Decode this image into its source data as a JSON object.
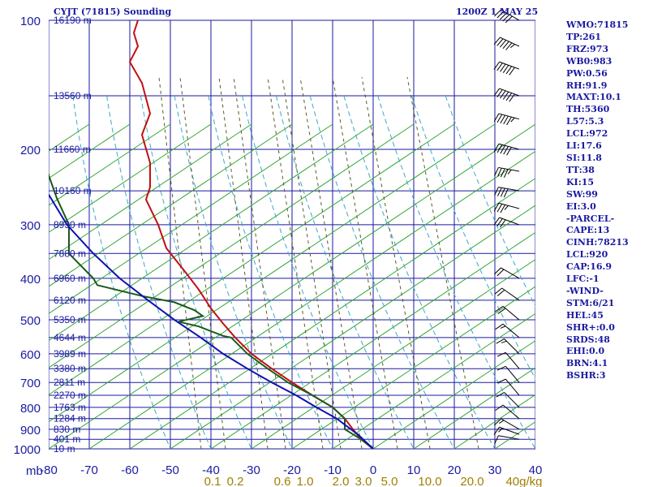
{
  "header": {
    "station_title": "CYJT (71815) Sounding",
    "run_time": "1200Z  1 MAY 25"
  },
  "indices": [
    "WMO:71815",
    "TP:261",
    "FRZ:973",
    "WB0:983",
    "PW:0.56",
    "RH:91.9",
    "MAXT:10.1",
    "TH:5360",
    "L57:5.3",
    "LCL:972",
    "LI:17.6",
    "SI:11.8",
    "TT:38",
    "KI:15",
    "SW:99",
    "EI:3.0",
    "-PARCEL-",
    "CAPE:13",
    "CINH:78213",
    "LCL:920",
    "CAP:16.9",
    "LFC:-1",
    "-WIND-",
    "STM:6/21",
    "HEL:45",
    "SHR+:0.0",
    "SRDS:48",
    "EHI:0.0",
    "BRN:4.1",
    "BSHR:3"
  ],
  "colors": {
    "isobars": "#1a1aa0",
    "isotherms": "#1a1aa0",
    "dry_adiabats": "#2fa52f",
    "moist_adiabats": "#3aa8c8",
    "mixing_ratio": "#5a5a2a",
    "temperature": "#c01010",
    "dewpoint": "#1a5a1a",
    "parcel": "#1010b0",
    "wind_barbs": "#000000",
    "text": "#1a1aa0",
    "mixing_labels": "#a08000"
  },
  "chart_data": {
    "type": "line",
    "diagram": "skew-T log-P",
    "x_axis_unit": "°C",
    "y_axis_unit": "mb",
    "y_scale": "log",
    "xlim": [
      -80,
      0
    ],
    "ylim": [
      1000,
      100
    ],
    "pressure_levels": [
      100,
      200,
      300,
      400,
      500,
      600,
      700,
      800,
      900,
      1000
    ],
    "pressure_labels": [
      "100",
      "200",
      "300",
      "400",
      "500",
      "600",
      "700",
      "800",
      "900",
      "1000"
    ],
    "y_unit_label": "mb",
    "temperature_ticks": [
      -80,
      -70,
      -60,
      -50,
      -40,
      -30,
      -20,
      -10,
      0,
      10,
      20,
      30,
      40
    ],
    "temperature_labels": [
      "-80",
      "-70",
      "-60",
      "-50",
      "-40",
      "-30",
      "-20",
      "-10",
      "0",
      "10",
      "20",
      "30",
      "40"
    ],
    "mixing_ratio_labels": [
      {
        "value": 0.1,
        "label": "0.1"
      },
      {
        "value": 0.2,
        "label": "0.2"
      },
      {
        "value": 0.6,
        "label": "0.6"
      },
      {
        "value": 1.0,
        "label": "1.0"
      },
      {
        "value": 2.0,
        "label": "2.0"
      },
      {
        "value": 3.0,
        "label": "3.0"
      },
      {
        "value": 5.0,
        "label": "5.0"
      },
      {
        "value": 10.0,
        "label": "10.0"
      },
      {
        "value": 20.0,
        "label": "20.0"
      },
      {
        "value": 40,
        "label": "40g/kg"
      }
    ],
    "heights": [
      {
        "p": 100,
        "label": "16190 m"
      },
      {
        "p": 150,
        "label": "13560 m"
      },
      {
        "p": 200,
        "label": "11660 m"
      },
      {
        "p": 250,
        "label": "10160 m"
      },
      {
        "p": 300,
        "label": "8930 m"
      },
      {
        "p": 350,
        "label": "7880 m"
      },
      {
        "p": 400,
        "label": "6960 m"
      },
      {
        "p": 450,
        "label": "6120 m"
      },
      {
        "p": 500,
        "label": "5350 m"
      },
      {
        "p": 550,
        "label": "4644 m"
      },
      {
        "p": 600,
        "label": "3989 m"
      },
      {
        "p": 650,
        "label": "3380 m"
      },
      {
        "p": 700,
        "label": "2811 m"
      },
      {
        "p": 750,
        "label": "2270 m"
      },
      {
        "p": 800,
        "label": "1763 m"
      },
      {
        "p": 850,
        "label": "1284 m"
      },
      {
        "p": 900,
        "label": "830 m"
      },
      {
        "p": 950,
        "label": "401 m"
      },
      {
        "p": 1000,
        "label": "10 m"
      }
    ],
    "series": [
      {
        "key": "temperature",
        "points": [
          [
            100,
            -58
          ],
          [
            107,
            -59
          ],
          [
            115,
            -58
          ],
          [
            125,
            -60
          ],
          [
            140,
            -57
          ],
          [
            165,
            -55
          ],
          [
            185,
            -57
          ],
          [
            215,
            -55
          ],
          [
            245,
            -55
          ],
          [
            262,
            -56
          ],
          [
            300,
            -53
          ],
          [
            340,
            -51
          ],
          [
            390,
            -46
          ],
          [
            425,
            -43
          ],
          [
            470,
            -40
          ],
          [
            510,
            -37
          ],
          [
            550,
            -34
          ],
          [
            600,
            -30
          ],
          [
            650,
            -25
          ],
          [
            700,
            -20
          ],
          [
            750,
            -15
          ],
          [
            800,
            -10
          ],
          [
            850,
            -7
          ],
          [
            900,
            -5
          ],
          [
            950,
            -3
          ],
          [
            1000,
            0
          ]
        ]
      },
      {
        "key": "dewpoint",
        "points": [
          [
            200,
            -81
          ],
          [
            230,
            -80
          ],
          [
            260,
            -78
          ],
          [
            300,
            -75
          ],
          [
            350,
            -75
          ],
          [
            400,
            -69
          ],
          [
            415,
            -68
          ],
          [
            440,
            -57
          ],
          [
            455,
            -49
          ],
          [
            475,
            -44
          ],
          [
            490,
            -42
          ],
          [
            505,
            -48
          ],
          [
            518,
            -43
          ],
          [
            545,
            -37
          ],
          [
            550,
            -35
          ],
          [
            600,
            -31
          ],
          [
            650,
            -26
          ],
          [
            700,
            -21
          ],
          [
            750,
            -15
          ],
          [
            800,
            -10
          ],
          [
            850,
            -7
          ],
          [
            900,
            -7
          ],
          [
            950,
            -3
          ],
          [
            1000,
            0
          ]
        ]
      },
      {
        "key": "parcel",
        "points": [
          [
            255,
            -80
          ],
          [
            300,
            -75.5
          ],
          [
            350,
            -69
          ],
          [
            400,
            -62.5
          ],
          [
            450,
            -55.5
          ],
          [
            500,
            -49
          ],
          [
            550,
            -42.5
          ],
          [
            600,
            -37
          ],
          [
            650,
            -31
          ],
          [
            700,
            -25
          ],
          [
            750,
            -19
          ],
          [
            800,
            -14
          ],
          [
            850,
            -9
          ],
          [
            900,
            -5.5
          ],
          [
            930,
            -3.5
          ],
          [
            1000,
            0
          ]
        ]
      }
    ],
    "wind_barbs": [
      {
        "p": 100,
        "dir": 300,
        "spd": 50
      },
      {
        "p": 115,
        "dir": 295,
        "spd": 55
      },
      {
        "p": 130,
        "dir": 290,
        "spd": 60
      },
      {
        "p": 150,
        "dir": 290,
        "spd": 60
      },
      {
        "p": 170,
        "dir": 285,
        "spd": 55
      },
      {
        "p": 200,
        "dir": 285,
        "spd": 50
      },
      {
        "p": 225,
        "dir": 280,
        "spd": 45
      },
      {
        "p": 250,
        "dir": 280,
        "spd": 40
      },
      {
        "p": 275,
        "dir": 285,
        "spd": 35
      },
      {
        "p": 300,
        "dir": 290,
        "spd": 30
      },
      {
        "p": 400,
        "dir": 300,
        "spd": 20
      },
      {
        "p": 450,
        "dir": 305,
        "spd": 20
      },
      {
        "p": 500,
        "dir": 310,
        "spd": 20
      },
      {
        "p": 550,
        "dir": 310,
        "spd": 15
      },
      {
        "p": 600,
        "dir": 315,
        "spd": 15
      },
      {
        "p": 650,
        "dir": 320,
        "spd": 10
      },
      {
        "p": 700,
        "dir": 320,
        "spd": 10
      },
      {
        "p": 750,
        "dir": 320,
        "spd": 10
      },
      {
        "p": 800,
        "dir": 315,
        "spd": 10
      },
      {
        "p": 850,
        "dir": 310,
        "spd": 10
      },
      {
        "p": 900,
        "dir": 300,
        "spd": 15
      },
      {
        "p": 925,
        "dir": 290,
        "spd": 15
      },
      {
        "p": 950,
        "dir": 280,
        "spd": 10
      }
    ]
  }
}
